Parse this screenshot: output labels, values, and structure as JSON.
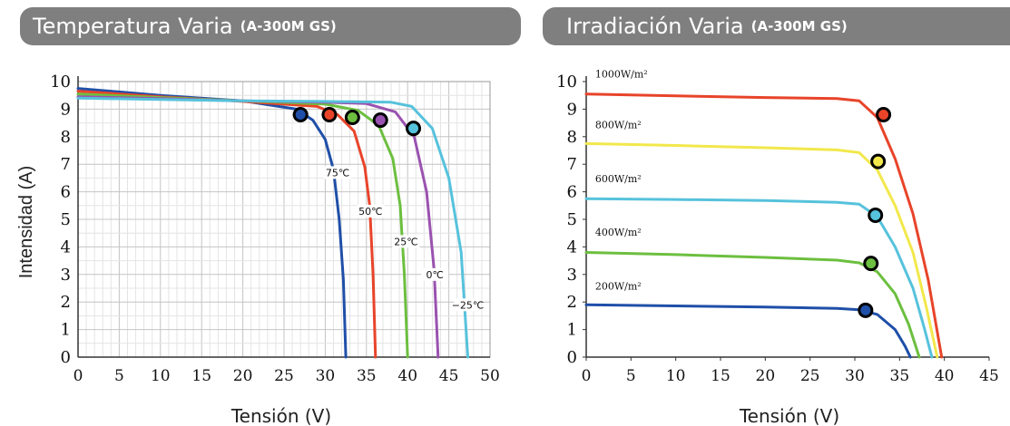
{
  "panels": {
    "left": {
      "title_main": "Temperatura  Varia",
      "title_model": "(A-300M GS)",
      "ylabel": "Intensidad (A)",
      "xlabel": "Tensión (V)"
    },
    "right": {
      "title_main": "Irradiación Varia",
      "title_model": "(A-300M GS)",
      "xlabel": "Tensión (V)"
    }
  },
  "chart_data": [
    {
      "type": "line",
      "title": "Temperatura  Varia (A-300M GS)",
      "xlabel": "Tensión (V)",
      "ylabel": "Intensidad (A)",
      "xlim": [
        0,
        50
      ],
      "ylim": [
        0,
        10
      ],
      "xticks": [
        0,
        5,
        10,
        15,
        20,
        25,
        30,
        35,
        40,
        45,
        50
      ],
      "yticks": [
        0,
        1,
        2,
        3,
        4,
        5,
        6,
        7,
        8,
        9,
        10
      ],
      "grid": true,
      "series": [
        {
          "name": "75℃",
          "color": "#1f4fa8",
          "points": [
            [
              0,
              9.75
            ],
            [
              10,
              9.5
            ],
            [
              20,
              9.3
            ],
            [
              26.5,
              9.0
            ],
            [
              28.5,
              8.6
            ],
            [
              30,
              7.9
            ],
            [
              31,
              6.8
            ],
            [
              31.7,
              5.0
            ],
            [
              32.2,
              2.8
            ],
            [
              32.5,
              0
            ]
          ],
          "mpp": [
            27,
            8.8
          ],
          "label_pos": [
            31.5,
            6.6
          ]
        },
        {
          "name": "50℃",
          "color": "#e8442a",
          "points": [
            [
              0,
              9.65
            ],
            [
              10,
              9.45
            ],
            [
              20,
              9.28
            ],
            [
              29,
              9.1
            ],
            [
              31.5,
              8.8
            ],
            [
              33.5,
              8.2
            ],
            [
              34.8,
              6.9
            ],
            [
              35.4,
              5.5
            ],
            [
              35.8,
              3.0
            ],
            [
              36.1,
              0
            ]
          ],
          "mpp": [
            30.5,
            8.8
          ],
          "label_pos": [
            35.5,
            5.2
          ]
        },
        {
          "name": "25℃",
          "color": "#6cbf3f",
          "points": [
            [
              0,
              9.55
            ],
            [
              10,
              9.42
            ],
            [
              20,
              9.3
            ],
            [
              30,
              9.18
            ],
            [
              34,
              8.95
            ],
            [
              36.5,
              8.4
            ],
            [
              38.2,
              7.2
            ],
            [
              39.1,
              5.5
            ],
            [
              39.6,
              3.0
            ],
            [
              40,
              0
            ]
          ],
          "mpp": [
            33.3,
            8.7
          ],
          "label_pos": [
            39.8,
            4.1
          ]
        },
        {
          "name": "0℃",
          "color": "#9a52b0",
          "points": [
            [
              0,
              9.45
            ],
            [
              10,
              9.38
            ],
            [
              20,
              9.3
            ],
            [
              30,
              9.25
            ],
            [
              35,
              9.2
            ],
            [
              38.5,
              8.9
            ],
            [
              40.8,
              8.0
            ],
            [
              42.3,
              6.0
            ],
            [
              43.2,
              3.2
            ],
            [
              43.7,
              0
            ]
          ],
          "mpp": [
            36.7,
            8.6
          ],
          "label_pos": [
            43.3,
            2.9
          ]
        },
        {
          "name": "−25℃",
          "color": "#56c2dc",
          "points": [
            [
              0,
              9.4
            ],
            [
              10,
              9.35
            ],
            [
              20,
              9.3
            ],
            [
              30,
              9.28
            ],
            [
              38,
              9.25
            ],
            [
              40.5,
              9.1
            ],
            [
              43,
              8.3
            ],
            [
              45,
              6.5
            ],
            [
              46.5,
              3.8
            ],
            [
              47.3,
              0
            ]
          ],
          "mpp": [
            40.7,
            8.3
          ],
          "label_pos": [
            47.3,
            1.8
          ]
        }
      ]
    },
    {
      "type": "line",
      "title": "Irradiación Varia (A-300M GS)",
      "xlabel": "Tensión (V)",
      "ylabel": "",
      "xlim": [
        0,
        45
      ],
      "ylim": [
        0,
        10
      ],
      "xticks": [
        0,
        5,
        10,
        15,
        20,
        25,
        30,
        35,
        40,
        45
      ],
      "yticks": [
        0,
        1,
        2,
        3,
        4,
        5,
        6,
        7,
        8,
        9,
        10
      ],
      "grid": false,
      "series": [
        {
          "name": "1000W/m²",
          "color": "#e8442a",
          "points": [
            [
              0,
              9.55
            ],
            [
              10,
              9.48
            ],
            [
              20,
              9.42
            ],
            [
              28,
              9.38
            ],
            [
              30.5,
              9.3
            ],
            [
              32.5,
              8.7
            ],
            [
              34.5,
              7.2
            ],
            [
              36.5,
              5.2
            ],
            [
              38.2,
              2.8
            ],
            [
              39.7,
              0
            ]
          ],
          "mpp": [
            33.2,
            8.8
          ],
          "label_pos": [
            1,
            10.15
          ]
        },
        {
          "name": "800W/m²",
          "color": "#f2e84c",
          "points": [
            [
              0,
              7.75
            ],
            [
              10,
              7.68
            ],
            [
              20,
              7.6
            ],
            [
              28,
              7.52
            ],
            [
              30.5,
              7.42
            ],
            [
              32.5,
              6.8
            ],
            [
              34.5,
              5.5
            ],
            [
              36.5,
              3.8
            ],
            [
              38,
              1.8
            ],
            [
              39.2,
              0
            ]
          ],
          "mpp": [
            32.6,
            7.1
          ],
          "label_pos": [
            1,
            8.3
          ]
        },
        {
          "name": "600W/m²",
          "color": "#56c2dc",
          "points": [
            [
              0,
              5.75
            ],
            [
              10,
              5.72
            ],
            [
              20,
              5.68
            ],
            [
              28,
              5.62
            ],
            [
              30.5,
              5.55
            ],
            [
              32.5,
              5.1
            ],
            [
              34.5,
              4.0
            ],
            [
              36.5,
              2.5
            ],
            [
              37.8,
              1.0
            ],
            [
              38.6,
              0
            ]
          ],
          "mpp": [
            32.3,
            5.15
          ],
          "label_pos": [
            1,
            6.35
          ]
        },
        {
          "name": "400W/m²",
          "color": "#6cbf3f",
          "points": [
            [
              0,
              3.8
            ],
            [
              10,
              3.72
            ],
            [
              20,
              3.62
            ],
            [
              28,
              3.52
            ],
            [
              30.5,
              3.42
            ],
            [
              32.5,
              3.1
            ],
            [
              34.5,
              2.3
            ],
            [
              36,
              1.2
            ],
            [
              37.2,
              0
            ]
          ],
          "mpp": [
            31.8,
            3.4
          ],
          "label_pos": [
            1,
            4.4
          ]
        },
        {
          "name": "200W/m²",
          "color": "#1f4fa8",
          "points": [
            [
              0,
              1.9
            ],
            [
              10,
              1.86
            ],
            [
              20,
              1.82
            ],
            [
              28,
              1.77
            ],
            [
              30.5,
              1.72
            ],
            [
              32.5,
              1.55
            ],
            [
              34.5,
              1.0
            ],
            [
              35.6,
              0.4
            ],
            [
              36.2,
              0
            ]
          ],
          "mpp": [
            31.2,
            1.7
          ],
          "label_pos": [
            1,
            2.45
          ]
        }
      ]
    }
  ]
}
